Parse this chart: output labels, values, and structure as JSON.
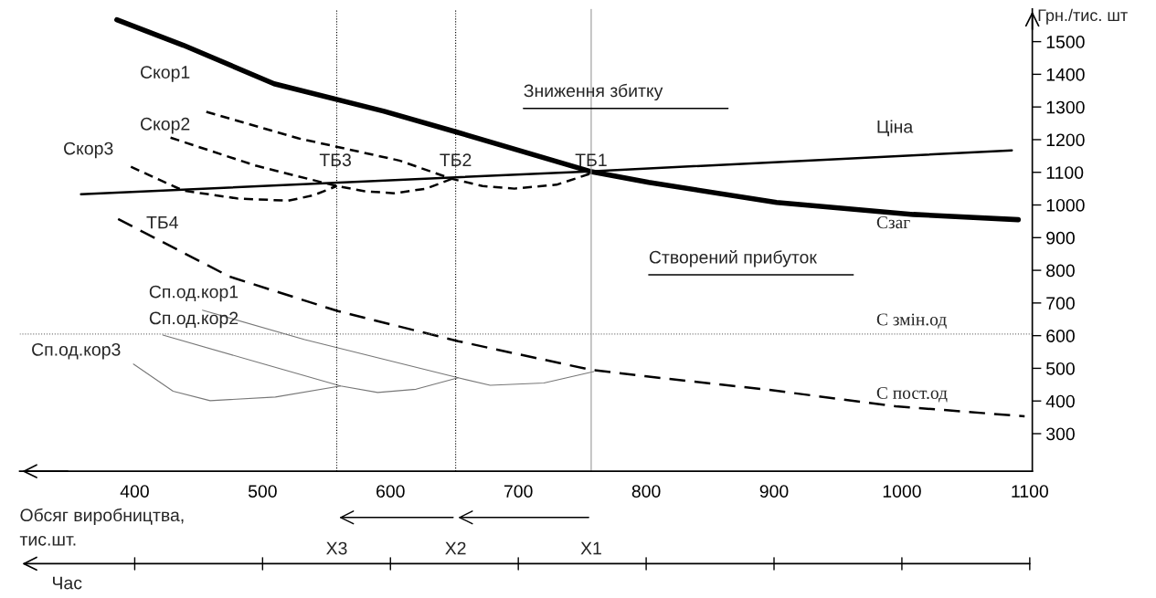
{
  "chart_data": {
    "type": "line",
    "xlabel": "Обсяг виробництва,\nтис.шт.",
    "ylabel": "Грн./тис. шт",
    "xlim": [
      310,
      1102
    ],
    "xticks": [
      400,
      500,
      600,
      700,
      800,
      900,
      1000,
      1100
    ],
    "ylim": [
      185,
      1600
    ],
    "yticks": [
      300,
      400,
      500,
      600,
      700,
      800,
      900,
      1000,
      1100,
      1200,
      1300,
      1400,
      1500
    ],
    "grid": false,
    "legend": false,
    "marker": "none",
    "series": [
      {
        "color": "#000000",
        "line_style": "solid",
        "x": [
          386,
          438,
          509,
          595,
          652,
          756,
          802,
          902,
          1009,
          1091
        ],
        "values": [
          1567,
          1489,
          1371,
          1287,
          1223,
          1103,
          1069,
          1008,
          971,
          955
        ]
      },
      {
        "color": "#000000",
        "line_style": "solid",
        "x": [
          358,
          756,
          1086
        ],
        "values": [
          1033,
          1103,
          1167
        ]
      },
      {
        "color": "#000000",
        "line_style": "dashed",
        "x": [
          397,
          438,
          480,
          520,
          540,
          558
        ],
        "values": [
          1117,
          1044,
          1020,
          1013,
          1030,
          1058
        ]
      },
      {
        "color": "#000000",
        "line_style": "dashed",
        "x": [
          428,
          495,
          558,
          580,
          603,
          628,
          648
        ],
        "values": [
          1206,
          1120,
          1058,
          1042,
          1036,
          1050,
          1080
        ]
      },
      {
        "color": "#000000",
        "line_style": "dashed",
        "x": [
          456,
          528,
          607,
          648,
          672,
          697,
          730,
          758
        ],
        "values": [
          1285,
          1204,
          1136,
          1080,
          1058,
          1050,
          1062,
          1098
        ]
      },
      {
        "color": "#000000",
        "line_style": "dashed",
        "x": [
          387,
          474,
          559,
          653,
          756,
          799,
          896,
          995,
          1096
        ],
        "values": [
          957,
          781,
          675,
          583,
          496,
          476,
          434,
          384,
          353
        ]
      },
      {
        "color": "#777777",
        "line_style": "solid",
        "x": [
          399,
          430,
          459,
          510,
          561
        ],
        "values": [
          513,
          430,
          401,
          412,
          446
        ]
      },
      {
        "color": "#777777",
        "line_style": "solid",
        "x": [
          422,
          501,
          561,
          590,
          620,
          653
        ],
        "values": [
          602,
          513,
          446,
          426,
          436,
          471
        ]
      },
      {
        "color": "#777777",
        "line_style": "solid",
        "x": [
          453,
          533,
          653,
          678,
          720,
          759
        ],
        "values": [
          678,
          588,
          471,
          448,
          455,
          490
        ]
      }
    ],
    "ref_lines": [
      {
        "axis": "y",
        "value": 605,
        "color": "#777777",
        "line_style": "dotted"
      },
      {
        "axis": "x",
        "value": 558,
        "color": "#000000",
        "line_style": "dotted"
      },
      {
        "axis": "x",
        "value": 651,
        "color": "#000000",
        "line_style": "dotted"
      },
      {
        "axis": "x",
        "value": 757,
        "color": "#999999",
        "line_style": "solid"
      }
    ],
    "annotations": [
      "Скор1",
      "Скор2",
      "Скор3",
      "ТБ3",
      "ТБ2",
      "ТБ1",
      "ТБ4",
      "Сп.од.кор1",
      "Сп.од.кор2",
      "Сп.од.кор3",
      "Зниження збитку",
      "Створений прибуток",
      "Ціна",
      "Сзаг",
      "С змін.од",
      "С пост.од",
      "X3",
      "X2",
      "X1",
      "Час"
    ]
  }
}
